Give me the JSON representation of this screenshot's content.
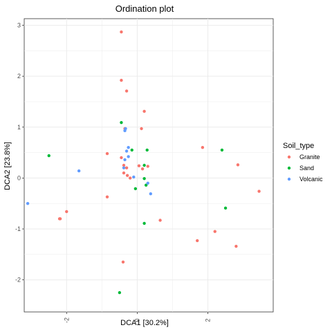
{
  "chart_data": {
    "type": "scatter",
    "title": "Ordination plot",
    "xlabel": "DCA1   [30.2%]",
    "ylabel": "DCA2   [23.8%]",
    "xlim": [
      -3.2,
      3.85
    ],
    "ylim": [
      -2.63,
      3.13
    ],
    "x_ticks": [
      -2,
      0,
      2
    ],
    "x_tick_labels": [
      "-2",
      "0",
      "2"
    ],
    "y_ticks": [
      -2,
      -1,
      0,
      1,
      2,
      3
    ],
    "y_tick_labels": [
      "-2",
      "-1",
      "0",
      "1",
      "2",
      "3"
    ],
    "grid": true,
    "legend_position": "right",
    "legend_title": "Soil_type",
    "series": [
      {
        "name": "Granite",
        "color": "#F8766D",
        "points": [
          [
            -0.45,
            2.87
          ],
          [
            -0.45,
            1.92
          ],
          [
            -0.3,
            1.71
          ],
          [
            0.2,
            1.31
          ],
          [
            0.12,
            0.97
          ],
          [
            -0.35,
            0.97
          ],
          [
            -0.85,
            0.48
          ],
          [
            -0.45,
            0.4
          ],
          [
            -0.38,
            0.25
          ],
          [
            -0.3,
            0.2
          ],
          [
            0.05,
            0.24
          ],
          [
            0.3,
            0.23
          ],
          [
            0.15,
            0.18
          ],
          [
            -0.38,
            0.1
          ],
          [
            -0.28,
            0.05
          ],
          [
            -0.2,
            0.0
          ],
          [
            -0.85,
            -0.37
          ],
          [
            -2.0,
            -0.66
          ],
          [
            -2.2,
            -0.8
          ],
          [
            -2.18,
            -0.8
          ],
          [
            0.65,
            -0.83
          ],
          [
            1.85,
            0.6
          ],
          [
            2.85,
            0.26
          ],
          [
            3.45,
            -0.26
          ],
          [
            2.2,
            -1.05
          ],
          [
            1.7,
            -1.23
          ],
          [
            2.8,
            -1.34
          ],
          [
            -0.4,
            -1.65
          ]
        ]
      },
      {
        "name": "Sand",
        "color": "#00BA38",
        "points": [
          [
            -2.5,
            0.44
          ],
          [
            -0.45,
            1.09
          ],
          [
            -0.15,
            0.55
          ],
          [
            0.28,
            0.55
          ],
          [
            0.2,
            0.25
          ],
          [
            0.2,
            -0.01
          ],
          [
            0.25,
            -0.14
          ],
          [
            -0.05,
            -0.21
          ],
          [
            2.4,
            0.55
          ],
          [
            2.5,
            -0.59
          ],
          [
            0.2,
            -0.89
          ],
          [
            -0.5,
            -2.25
          ]
        ]
      },
      {
        "name": "Volcanic",
        "color": "#619CFF",
        "points": [
          [
            -3.1,
            -0.5
          ],
          [
            -1.65,
            0.14
          ],
          [
            -0.35,
            0.93
          ],
          [
            -0.33,
            0.97
          ],
          [
            -0.25,
            0.6
          ],
          [
            -0.3,
            0.53
          ],
          [
            -0.25,
            0.42
          ],
          [
            -0.35,
            0.36
          ],
          [
            -0.38,
            0.2
          ],
          [
            -0.1,
            0.02
          ],
          [
            0.3,
            -0.1
          ],
          [
            0.38,
            -0.31
          ]
        ]
      }
    ]
  }
}
